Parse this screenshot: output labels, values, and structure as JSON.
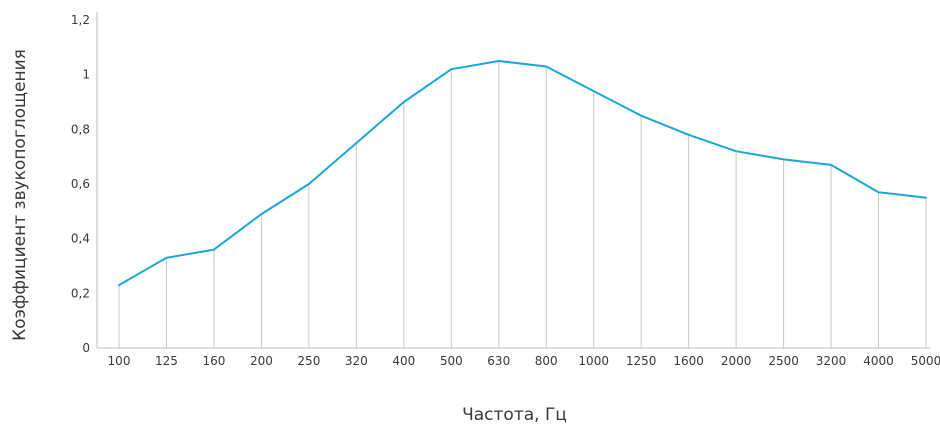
{
  "chart_data": {
    "type": "line",
    "title": "",
    "xlabel": "Частота,  Гц",
    "ylabel": "Коэффициент звукопоглощения",
    "categories": [
      "100",
      "125",
      "160",
      "200",
      "250",
      "320",
      "400",
      "500",
      "630",
      "800",
      "1000",
      "1250",
      "1600",
      "2000",
      "2500",
      "3200",
      "4000",
      "5000"
    ],
    "series": [
      {
        "values": [
          0.23,
          0.33,
          0.36,
          0.49,
          0.6,
          0.75,
          0.9,
          1.02,
          1.05,
          1.03,
          0.94,
          0.85,
          0.78,
          0.72,
          0.69,
          0.67,
          0.57,
          0.55
        ]
      }
    ],
    "ylim": [
      0,
      1.2
    ],
    "yticks": [
      0,
      0.2,
      0.4,
      0.6,
      0.8,
      1,
      1.2
    ],
    "ytick_labels": [
      "0",
      "0,2",
      "0,4",
      "0,6",
      "0,8",
      "1",
      "1,2"
    ],
    "vertical_gridlines": true,
    "colors": {
      "line": "#1aa6d8",
      "grid": "#c8c8c8",
      "axis": "#bdbdbd",
      "text": "#3a3a3a"
    }
  }
}
